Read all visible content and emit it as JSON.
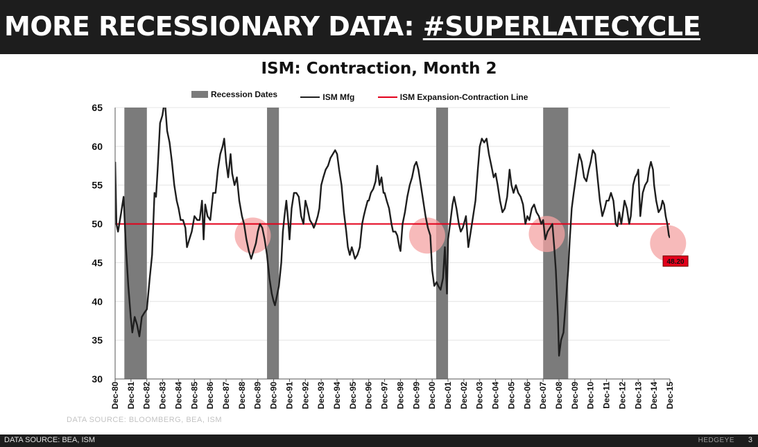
{
  "header": {
    "title_prefix": "MORE RECESSIONARY DATA: ",
    "title_tag": "#SUPERLATECYCLE"
  },
  "colors": {
    "recession": "#7b7b7b",
    "ism_line": "#1e1e1e",
    "threshold_line": "#e3001b",
    "highlight": "#f4a3a3",
    "callout_bg": "#e3001b"
  },
  "chart_data": {
    "type": "line",
    "title": "ISM: Contraction, Month 2",
    "xlabel": "",
    "ylabel": "",
    "ylim": [
      30,
      65
    ],
    "yticks": [
      30,
      35,
      40,
      45,
      50,
      55,
      60,
      65
    ],
    "xlim": [
      1980.917,
      2015.917
    ],
    "x_tick_labels": [
      "Dec-80",
      "Dec-81",
      "Dec-82",
      "Dec-83",
      "Dec-84",
      "Dec-85",
      "Dec-86",
      "Dec-87",
      "Dec-88",
      "Dec-89",
      "Dec-90",
      "Dec-91",
      "Dec-92",
      "Dec-93",
      "Dec-94",
      "Dec-95",
      "Dec-96",
      "Dec-97",
      "Dec-98",
      "Dec-99",
      "Dec-00",
      "Dec-01",
      "Dec-02",
      "Dec-03",
      "Dec-04",
      "Dec-05",
      "Dec-06",
      "Dec-07",
      "Dec-08",
      "Dec-09",
      "Dec-10",
      "Dec-11",
      "Dec-12",
      "Dec-13",
      "Dec-14",
      "Dec-15"
    ],
    "grid": "horizontal",
    "legend": {
      "position": "top",
      "entries": [
        "Recession Dates",
        "ISM Mfg",
        "ISM Expansion-Contraction Line"
      ]
    },
    "recessions": [
      {
        "name": "Recession Dates",
        "start": 1981.5,
        "end": 1982.92
      },
      {
        "name": "Recession Dates",
        "start": 1990.5,
        "end": 1991.25
      },
      {
        "name": "Recession Dates",
        "start": 2001.17,
        "end": 2001.92
      },
      {
        "name": "Recession Dates",
        "start": 2007.92,
        "end": 2009.5
      }
    ],
    "threshold": {
      "name": "ISM Expansion-Contraction Line",
      "value": 50
    },
    "series": [
      {
        "name": "ISM Mfg",
        "points": [
          [
            1980.92,
            58
          ],
          [
            1981.0,
            50
          ],
          [
            1981.1,
            49
          ],
          [
            1981.3,
            51.5
          ],
          [
            1981.45,
            53.5
          ],
          [
            1981.6,
            47
          ],
          [
            1981.75,
            42
          ],
          [
            1981.9,
            38
          ],
          [
            1982.0,
            36
          ],
          [
            1982.15,
            38
          ],
          [
            1982.3,
            37
          ],
          [
            1982.45,
            35.5
          ],
          [
            1982.6,
            38
          ],
          [
            1982.75,
            38.5
          ],
          [
            1982.92,
            39
          ],
          [
            1983.1,
            43
          ],
          [
            1983.25,
            46
          ],
          [
            1983.4,
            54
          ],
          [
            1983.5,
            53.5
          ],
          [
            1983.6,
            57
          ],
          [
            1983.75,
            63
          ],
          [
            1983.9,
            64
          ],
          [
            1984.05,
            66
          ],
          [
            1984.2,
            62
          ],
          [
            1984.35,
            60.5
          ],
          [
            1984.5,
            58
          ],
          [
            1984.65,
            55
          ],
          [
            1984.8,
            53
          ],
          [
            1984.92,
            52
          ],
          [
            1985.05,
            50.5
          ],
          [
            1985.2,
            50.5
          ],
          [
            1985.35,
            49.5
          ],
          [
            1985.45,
            47
          ],
          [
            1985.6,
            48
          ],
          [
            1985.75,
            49
          ],
          [
            1985.92,
            51
          ],
          [
            1986.1,
            50.5
          ],
          [
            1986.25,
            50.5
          ],
          [
            1986.4,
            53
          ],
          [
            1986.5,
            48
          ],
          [
            1986.6,
            52.5
          ],
          [
            1986.75,
            51
          ],
          [
            1986.92,
            50.5
          ],
          [
            1987.1,
            54
          ],
          [
            1987.25,
            54
          ],
          [
            1987.4,
            57
          ],
          [
            1987.55,
            59
          ],
          [
            1987.7,
            60
          ],
          [
            1987.8,
            61
          ],
          [
            1987.92,
            58
          ],
          [
            1988.05,
            56
          ],
          [
            1988.2,
            59
          ],
          [
            1988.3,
            56.5
          ],
          [
            1988.45,
            55
          ],
          [
            1988.6,
            56
          ],
          [
            1988.75,
            53
          ],
          [
            1988.92,
            51
          ],
          [
            1989.05,
            50
          ],
          [
            1989.2,
            48
          ],
          [
            1989.35,
            46.5
          ],
          [
            1989.5,
            45.5
          ],
          [
            1989.65,
            46.5
          ],
          [
            1989.8,
            47.5
          ],
          [
            1989.92,
            49
          ],
          [
            1990.05,
            50
          ],
          [
            1990.2,
            49.5
          ],
          [
            1990.35,
            48
          ],
          [
            1990.5,
            46
          ],
          [
            1990.65,
            43
          ],
          [
            1990.8,
            41
          ],
          [
            1990.92,
            40
          ],
          [
            1991.0,
            39.5
          ],
          [
            1991.1,
            40.5
          ],
          [
            1991.25,
            42
          ],
          [
            1991.4,
            45
          ],
          [
            1991.5,
            49
          ],
          [
            1991.6,
            51
          ],
          [
            1991.72,
            53
          ],
          [
            1991.85,
            50
          ],
          [
            1991.92,
            48
          ],
          [
            1992.05,
            52
          ],
          [
            1992.2,
            54
          ],
          [
            1992.35,
            54
          ],
          [
            1992.5,
            53.5
          ],
          [
            1992.65,
            51
          ],
          [
            1992.8,
            50
          ],
          [
            1992.92,
            53
          ],
          [
            1993.05,
            52
          ],
          [
            1993.2,
            50.5
          ],
          [
            1993.35,
            50
          ],
          [
            1993.45,
            49.5
          ],
          [
            1993.55,
            50
          ],
          [
            1993.7,
            51
          ],
          [
            1993.8,
            52
          ],
          [
            1993.92,
            55
          ],
          [
            1994.05,
            56
          ],
          [
            1994.2,
            57
          ],
          [
            1994.35,
            57.5
          ],
          [
            1994.5,
            58.5
          ],
          [
            1994.65,
            59
          ],
          [
            1994.8,
            59.5
          ],
          [
            1994.92,
            59
          ],
          [
            1995.05,
            57
          ],
          [
            1995.2,
            55
          ],
          [
            1995.35,
            51.5
          ],
          [
            1995.5,
            49
          ],
          [
            1995.6,
            47
          ],
          [
            1995.72,
            46
          ],
          [
            1995.85,
            47
          ],
          [
            1995.92,
            46.5
          ],
          [
            1996.05,
            45.5
          ],
          [
            1996.2,
            46
          ],
          [
            1996.35,
            47
          ],
          [
            1996.5,
            50
          ],
          [
            1996.6,
            51
          ],
          [
            1996.72,
            52
          ],
          [
            1996.85,
            53
          ],
          [
            1996.92,
            53
          ],
          [
            1997.05,
            54
          ],
          [
            1997.2,
            54.5
          ],
          [
            1997.35,
            55.5
          ],
          [
            1997.45,
            57.5
          ],
          [
            1997.6,
            55
          ],
          [
            1997.72,
            56
          ],
          [
            1997.85,
            54
          ],
          [
            1997.92,
            54
          ],
          [
            1998.05,
            53
          ],
          [
            1998.2,
            52
          ],
          [
            1998.35,
            50
          ],
          [
            1998.45,
            49
          ],
          [
            1998.6,
            49
          ],
          [
            1998.72,
            48.5
          ],
          [
            1998.85,
            47
          ],
          [
            1998.92,
            46.5
          ],
          [
            1999.05,
            50
          ],
          [
            1999.2,
            51.5
          ],
          [
            1999.35,
            53.5
          ],
          [
            1999.5,
            55
          ],
          [
            1999.65,
            56
          ],
          [
            1999.8,
            57.5
          ],
          [
            1999.92,
            58
          ],
          [
            2000.05,
            57
          ],
          [
            2000.2,
            55
          ],
          [
            2000.35,
            53
          ],
          [
            2000.5,
            51
          ],
          [
            2000.65,
            49.5
          ],
          [
            2000.8,
            48.5
          ],
          [
            2000.92,
            44
          ],
          [
            2001.05,
            42
          ],
          [
            2001.2,
            42.5
          ],
          [
            2001.3,
            42
          ],
          [
            2001.45,
            41.5
          ],
          [
            2001.6,
            43
          ],
          [
            2001.72,
            47
          ],
          [
            2001.85,
            41
          ],
          [
            2001.92,
            48
          ],
          [
            2002.05,
            50
          ],
          [
            2002.2,
            52.5
          ],
          [
            2002.3,
            53.5
          ],
          [
            2002.45,
            52
          ],
          [
            2002.6,
            50
          ],
          [
            2002.72,
            49
          ],
          [
            2002.85,
            49.5
          ],
          [
            2002.92,
            50
          ],
          [
            2003.05,
            51
          ],
          [
            2003.2,
            47
          ],
          [
            2003.35,
            49
          ],
          [
            2003.5,
            51
          ],
          [
            2003.65,
            53
          ],
          [
            2003.8,
            57
          ],
          [
            2003.92,
            60
          ],
          [
            2004.05,
            61
          ],
          [
            2004.2,
            60.5
          ],
          [
            2004.35,
            61
          ],
          [
            2004.5,
            59
          ],
          [
            2004.65,
            57.5
          ],
          [
            2004.8,
            56
          ],
          [
            2004.92,
            56.5
          ],
          [
            2005.05,
            55
          ],
          [
            2005.2,
            53
          ],
          [
            2005.35,
            51.5
          ],
          [
            2005.5,
            52
          ],
          [
            2005.65,
            53.5
          ],
          [
            2005.8,
            57
          ],
          [
            2005.92,
            55
          ],
          [
            2006.05,
            54
          ],
          [
            2006.2,
            55
          ],
          [
            2006.35,
            54
          ],
          [
            2006.5,
            53.5
          ],
          [
            2006.65,
            52.5
          ],
          [
            2006.8,
            50
          ],
          [
            2006.92,
            51
          ],
          [
            2007.05,
            50.5
          ],
          [
            2007.2,
            52
          ],
          [
            2007.35,
            52.5
          ],
          [
            2007.5,
            51.5
          ],
          [
            2007.65,
            51
          ],
          [
            2007.8,
            50
          ],
          [
            2007.92,
            50.5
          ],
          [
            2008.05,
            48
          ],
          [
            2008.2,
            49
          ],
          [
            2008.35,
            49.5
          ],
          [
            2008.5,
            50
          ],
          [
            2008.62,
            47
          ],
          [
            2008.72,
            44
          ],
          [
            2008.85,
            38
          ],
          [
            2008.92,
            33
          ],
          [
            2009.05,
            35
          ],
          [
            2009.2,
            36
          ],
          [
            2009.35,
            40
          ],
          [
            2009.5,
            44
          ],
          [
            2009.6,
            48
          ],
          [
            2009.72,
            52
          ],
          [
            2009.85,
            54
          ],
          [
            2009.92,
            55
          ],
          [
            2010.05,
            57
          ],
          [
            2010.2,
            59
          ],
          [
            2010.35,
            58
          ],
          [
            2010.5,
            56
          ],
          [
            2010.65,
            55.5
          ],
          [
            2010.8,
            57
          ],
          [
            2010.92,
            58
          ],
          [
            2011.05,
            59.5
          ],
          [
            2011.2,
            59
          ],
          [
            2011.35,
            56
          ],
          [
            2011.5,
            53
          ],
          [
            2011.65,
            51
          ],
          [
            2011.8,
            52
          ],
          [
            2011.92,
            53
          ],
          [
            2012.05,
            53
          ],
          [
            2012.2,
            54
          ],
          [
            2012.35,
            53
          ],
          [
            2012.5,
            50
          ],
          [
            2012.6,
            49.7
          ],
          [
            2012.72,
            51.5
          ],
          [
            2012.85,
            50
          ],
          [
            2012.92,
            51
          ],
          [
            2013.05,
            53
          ],
          [
            2013.2,
            52
          ],
          [
            2013.35,
            50
          ],
          [
            2013.45,
            51
          ],
          [
            2013.6,
            55
          ],
          [
            2013.72,
            56
          ],
          [
            2013.85,
            56.5
          ],
          [
            2013.92,
            57
          ],
          [
            2014.05,
            51
          ],
          [
            2014.2,
            54
          ],
          [
            2014.35,
            55
          ],
          [
            2014.5,
            55.5
          ],
          [
            2014.6,
            57
          ],
          [
            2014.72,
            58
          ],
          [
            2014.85,
            57
          ],
          [
            2014.92,
            55
          ],
          [
            2015.05,
            53
          ],
          [
            2015.2,
            51.5
          ],
          [
            2015.35,
            52
          ],
          [
            2015.45,
            53
          ],
          [
            2015.55,
            52.5
          ],
          [
            2015.65,
            51
          ],
          [
            2015.75,
            50
          ],
          [
            2015.85,
            48.5
          ],
          [
            2015.92,
            48.2
          ]
        ]
      }
    ],
    "highlights": [
      {
        "x": 1989.6,
        "y": 48.5
      },
      {
        "x": 2000.6,
        "y": 48.5
      },
      {
        "x": 2008.15,
        "y": 48.7
      },
      {
        "x": 2015.8,
        "y": 47.5
      }
    ],
    "callout": {
      "x": 2015.92,
      "y": 48.2,
      "label": "48.20"
    }
  },
  "sources": {
    "chart_source": "DATA SOURCE: BLOOMBERG, BEA, ISM",
    "footer_source": "DATA SOURCE: BEA, ISM",
    "brand": "HEDGEYE",
    "page_number": "3"
  }
}
